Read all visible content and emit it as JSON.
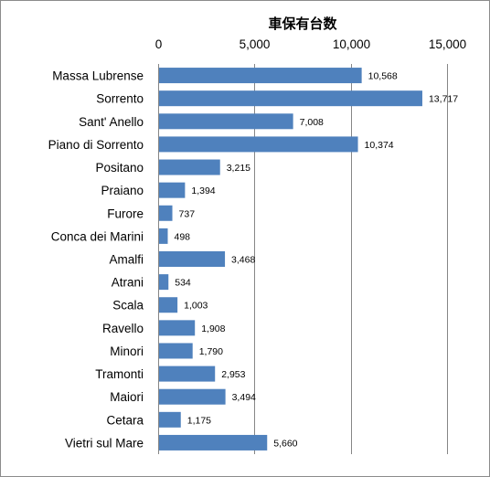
{
  "chart_data": {
    "type": "bar",
    "orientation": "horizontal",
    "title": "",
    "xlabel": "車保有台数",
    "ylabel": "",
    "xlim": [
      0,
      15000
    ],
    "x_ticks": [
      0,
      5000,
      10000,
      15000
    ],
    "x_tick_labels": [
      "0",
      "5,000",
      "10,000",
      "15,000"
    ],
    "x_axis_position": "top",
    "grid": true,
    "legend": "none",
    "bar_color": "#4f81bd",
    "categories": [
      "Massa Lubrense",
      "Sorrento",
      "Sant' Anello",
      "Piano di Sorrento",
      "Positano",
      "Praiano",
      "Furore",
      "Conca dei Marini",
      "Amalfi",
      "Atrani",
      "Scala",
      "Ravello",
      "Minori",
      "Tramonti",
      "Maiori",
      "Cetara",
      "Vietri sul Mare"
    ],
    "values": [
      10568,
      13717,
      7008,
      10374,
      3215,
      1394,
      737,
      498,
      3468,
      534,
      1003,
      1908,
      1790,
      2953,
      3494,
      1175,
      5660
    ],
    "data_labels": [
      "10,568",
      "13,717",
      "7,008",
      "10,374",
      "3,215",
      "1,394",
      "737",
      "498",
      "3,468",
      "534",
      "1,003",
      "1,908",
      "1,790",
      "2,953",
      "3,494",
      "1,175",
      "5,660"
    ]
  }
}
